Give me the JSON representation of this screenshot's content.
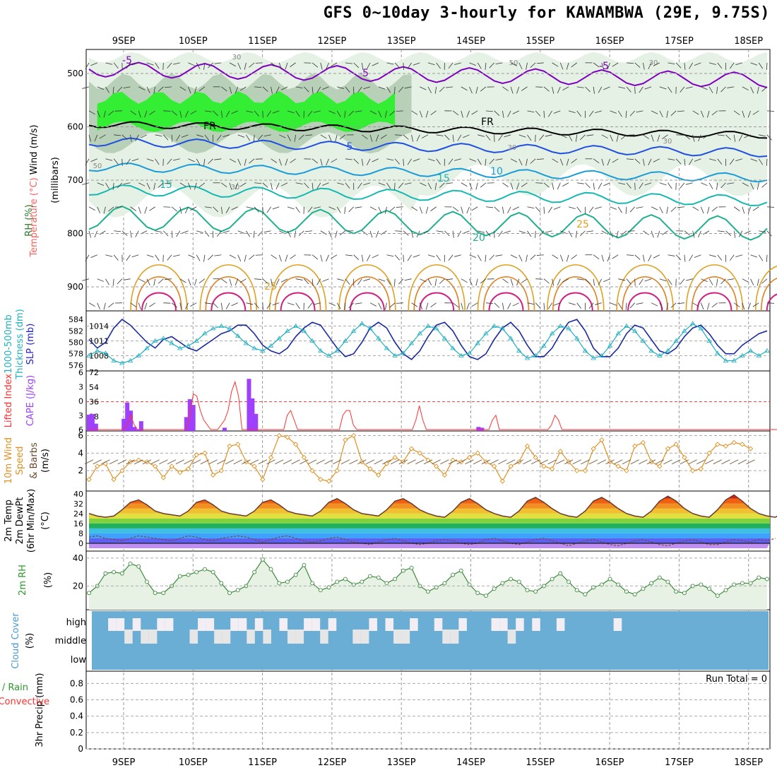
{
  "title": "GFS 0~10day 3-hourly for KAWAMBWA (29E, 9.75S)",
  "dates": [
    "9SEP",
    "10SEP",
    "11SEP",
    "12SEP",
    "13SEP",
    "14SEP",
    "15SEP",
    "16SEP",
    "17SEP",
    "18SEP"
  ],
  "run_total_label": "Run Total = 0",
  "panels": {
    "upper": {
      "label_wind": "Wind (m/s)",
      "label_temp": "Temperature (°C)",
      "label_rh": "RH (%)",
      "label_pres": "(millibars)"
    },
    "thickness": {
      "label_a": "1000-500mb",
      "label_b": "Thickness (dm)",
      "label_c": "SLP (mb)"
    },
    "cape": {
      "label_a": "Lifted Index",
      "label_b": "CAPE (J/kg)"
    },
    "wind10": {
      "label_a": "10m Wind",
      "label_b": "Speed",
      "label_c": "& Barbs",
      "label_d": "(m/s)"
    },
    "temp2m": {
      "label_a": "2m Temp",
      "label_b": "2m DewPt",
      "label_c": "(6hr Min/Max)",
      "label_d": "(°C)"
    },
    "rh2m": {
      "label_a": "2m RH",
      "label_b": "(%)"
    },
    "cloud": {
      "label_a": "Cloud Cover",
      "label_b": "(%)",
      "high": "high",
      "middle": "middle",
      "low": "low"
    },
    "precip": {
      "label_a": "Total / Rain",
      "label_b": "Convective",
      "label_c": "3hr Precip (mm)"
    }
  },
  "colors": {
    "rh": "#3b9c3b",
    "temp_red": "#ff4040",
    "wind": "#1a2aa0",
    "slp": "#2020d0",
    "thick": "#20b0c0",
    "cape": "#a040ff",
    "li": "#ff3030",
    "speed": "#e09020",
    "cloud": "#6aaed6"
  },
  "chart_data": [
    {
      "type": "contour",
      "title": "",
      "ylabel": "millibars",
      "y_ticks": [
        500,
        600,
        700,
        800,
        900
      ],
      "ylim": [
        945,
        455
      ],
      "temperature_contour_labels": [
        "-5",
        "-5",
        "-5",
        "5",
        "10",
        "15",
        "15",
        "20",
        "25",
        "25",
        "FR",
        "FR"
      ],
      "rh_contour_labels": [
        "30",
        "30",
        "50",
        "50",
        "30",
        "30",
        "30"
      ]
    },
    {
      "type": "line",
      "title": "",
      "ylabel_left": "1000-500mb Thickness (dm)",
      "ylabel_right": "SLP (mb)",
      "y_ticks_left": [
        576,
        578,
        580,
        582,
        584
      ],
      "y_ticks_right": [
        1008,
        1011,
        1014
      ],
      "series": [
        {
          "name": "1000-500mb Thickness (dm)",
          "values": [
            580.5,
            579.0,
            580.0,
            582.5,
            584.0,
            583.0,
            581.5,
            580.0,
            579.0,
            580.5,
            581.0,
            580.0,
            579.0,
            578.5,
            579.5,
            580.5,
            581.5,
            582.0,
            583.0,
            583.0,
            581.5,
            579.5,
            578.5,
            578.0,
            579.0,
            581.0,
            582.5,
            583.5,
            583.0,
            581.0,
            579.0,
            577.5,
            578.0,
            580.0,
            582.5,
            583.5,
            582.5,
            580.0,
            578.0,
            577.0,
            578.5,
            581.0,
            583.0,
            583.5,
            582.0,
            579.5,
            577.5,
            577.0,
            578.0,
            580.5,
            582.5,
            583.5,
            582.0,
            579.5,
            577.5,
            577.5,
            579.0,
            581.5,
            583.5,
            584.0,
            582.0,
            579.0,
            577.5,
            577.5,
            579.0,
            581.5,
            583.0,
            582.5,
            580.5,
            578.5,
            578.0,
            579.0,
            581.0,
            582.5,
            583.0,
            581.5,
            579.5,
            578.0,
            578.0,
            579.5,
            580.5,
            581.5,
            582.0
          ]
        },
        {
          "name": "SLP (mb)",
          "values": [
            1008.0,
            1009.0,
            1008.5,
            1007.0,
            1006.5,
            1007.0,
            1008.0,
            1009.5,
            1011.0,
            1011.5,
            1010.5,
            1009.5,
            1010.0,
            1011.0,
            1012.5,
            1013.5,
            1014.0,
            1013.5,
            1012.0,
            1010.5,
            1009.5,
            1009.0,
            1010.0,
            1011.5,
            1013.0,
            1014.0,
            1013.0,
            1011.0,
            1009.0,
            1008.0,
            1009.0,
            1011.0,
            1013.0,
            1014.5,
            1013.5,
            1011.5,
            1009.5,
            1008.0,
            1008.5,
            1010.5,
            1012.5,
            1014.0,
            1013.5,
            1011.5,
            1009.5,
            1008.0,
            1008.5,
            1010.5,
            1012.5,
            1014.0,
            1013.5,
            1011.5,
            1009.0,
            1007.5,
            1008.0,
            1010.0,
            1012.5,
            1014.0,
            1013.5,
            1011.5,
            1009.0,
            1007.5,
            1008.0,
            1010.0,
            1012.5,
            1014.0,
            1013.0,
            1011.0,
            1009.0,
            1008.0,
            1009.0,
            1011.0,
            1013.0,
            1014.5,
            1013.5,
            1011.0,
            1008.5,
            1007.0,
            1007.0,
            1008.0,
            1009.0,
            1008.0,
            1009.0
          ]
        }
      ]
    },
    {
      "type": "bar",
      "title": "",
      "ylabel_left": "Lifted Index",
      "ylabel_right": "CAPE (J/kg)",
      "li_ticks": [
        -6,
        -3,
        0,
        3,
        6
      ],
      "cape_ticks": [
        18,
        36,
        54,
        72
      ],
      "series": [
        {
          "name": "CAPE (J/kg)",
          "values": [
            20,
            21,
            9,
            0,
            0,
            0,
            0,
            0,
            0,
            0,
            15,
            35,
            25,
            5,
            2,
            12,
            0,
            0,
            0,
            0,
            0,
            0,
            0,
            0,
            0,
            0,
            0,
            0,
            17,
            39,
            32,
            0,
            0,
            0,
            0,
            0,
            0,
            0,
            0,
            4,
            0,
            0,
            0,
            0,
            0,
            0,
            64,
            40,
            21,
            0,
            0,
            0,
            0,
            0,
            0,
            0,
            0,
            0,
            0,
            0,
            0,
            0,
            0,
            0,
            0,
            0,
            0,
            0,
            0,
            0,
            0,
            0,
            0,
            0,
            0,
            0,
            0,
            0,
            0,
            0,
            0,
            0,
            0,
            0,
            0,
            0,
            0,
            0,
            0,
            0,
            0,
            0,
            0,
            0,
            0,
            0,
            0,
            0,
            0,
            0,
            0,
            0,
            0,
            0,
            0,
            0,
            0,
            0,
            0,
            0,
            0,
            0,
            5,
            4,
            0,
            0,
            0,
            0,
            0,
            0,
            0,
            0,
            0,
            0,
            0,
            0,
            0,
            0,
            0,
            0,
            0,
            0,
            0,
            0,
            0,
            0,
            0,
            0,
            0,
            0,
            0,
            0,
            0,
            0,
            0,
            0,
            0,
            0,
            0,
            0,
            0,
            0,
            0,
            0,
            0,
            0,
            0,
            0,
            0,
            0,
            0,
            0,
            0,
            0,
            0,
            0,
            0,
            0,
            0,
            0,
            0,
            0,
            0,
            0,
            0,
            0,
            0,
            0,
            0,
            0,
            0,
            0,
            0,
            0,
            0,
            0,
            0,
            0,
            0,
            0,
            0,
            0,
            0,
            0,
            0,
            0
          ]
        },
        {
          "name": "Lifted Index",
          "values": [
            6,
            6,
            6,
            6,
            6,
            6,
            6,
            6,
            6,
            6,
            6,
            5,
            3,
            5,
            6,
            6,
            6,
            6,
            6,
            6,
            6,
            6,
            6,
            6,
            6,
            6,
            6,
            6,
            6,
            3,
            -1.5,
            -1,
            2,
            4,
            5,
            6,
            6,
            6,
            5,
            4,
            2,
            -2,
            -4,
            -1,
            6,
            6,
            6,
            6,
            6,
            6,
            6,
            6,
            6,
            6,
            6,
            6,
            6,
            3,
            2,
            4,
            6,
            6,
            6,
            6,
            6,
            6,
            6,
            6,
            6,
            6,
            6,
            6,
            6,
            3,
            2,
            2,
            5,
            6,
            6,
            6,
            6,
            6,
            6,
            6,
            6,
            6,
            6,
            6,
            6,
            6,
            6,
            6,
            6,
            6,
            4,
            1,
            4,
            6,
            6,
            6,
            6,
            6,
            6,
            6,
            6,
            6,
            6,
            6,
            6,
            6,
            6,
            6,
            6,
            6,
            6,
            6,
            4,
            3,
            6,
            6,
            6,
            6,
            6,
            6,
            6,
            6,
            6,
            6,
            6,
            6,
            6,
            6,
            6,
            5,
            3,
            4,
            6,
            6,
            6,
            6,
            6,
            6,
            6,
            6,
            6,
            6,
            6,
            6,
            6,
            6,
            6,
            6,
            6,
            6,
            6,
            6,
            6,
            6,
            6,
            6,
            6,
            6,
            6,
            6,
            6,
            6,
            6,
            6,
            6,
            6,
            6,
            6,
            6,
            6,
            6,
            6,
            6,
            6,
            6,
            6,
            6,
            6,
            6,
            6,
            6,
            6,
            6,
            6,
            6,
            6,
            6,
            6,
            6,
            6,
            6,
            6,
            6,
            6,
            6,
            6,
            5
          ]
        }
      ]
    },
    {
      "type": "line",
      "title": "",
      "ylabel": "10m Wind Speed & Barbs (m/s)",
      "y_ticks": [
        2,
        4,
        6
      ],
      "series": [
        {
          "name": "10m Wind Speed",
          "values": [
            1.0,
            2.5,
            2.8,
            1.0,
            2.0,
            3.0,
            3.2,
            3.0,
            2.5,
            1.2,
            2.5,
            1.8,
            2.2,
            3.8,
            4.0,
            1.5,
            2.0,
            4.8,
            5.0,
            3.0,
            2.5,
            1.0,
            3.5,
            6.0,
            5.8,
            5.0,
            3.5,
            2.0,
            1.0,
            0.8,
            2.0,
            5.5,
            6.0,
            3.0,
            2.2,
            1.5,
            2.8,
            3.5,
            3.0,
            4.5,
            4.0,
            3.2,
            2.5,
            1.5,
            3.2,
            3.0,
            3.5,
            4.0,
            3.0,
            2.5,
            0.8,
            2.5,
            3.0,
            4.8,
            3.5,
            2.5,
            2.2,
            4.2,
            3.0,
            2.0,
            2.0,
            4.5,
            5.5,
            3.0,
            2.5,
            2.0,
            4.8,
            5.2,
            3.0,
            2.5,
            4.5,
            5.0,
            3.5,
            2.0,
            2.2,
            4.0,
            5.0,
            4.8,
            5.2,
            5.0,
            4.5
          ]
        }
      ]
    },
    {
      "type": "area",
      "title": "",
      "ylabel": "2m Temp / 2m DewPt (°C)",
      "y_ticks": [
        0,
        8,
        16,
        24,
        32,
        40
      ],
      "series": [
        {
          "name": "2m Temp",
          "values": [
            24,
            22,
            21,
            22,
            27,
            33,
            35,
            31,
            26,
            24,
            23,
            22,
            26,
            33,
            35,
            31,
            26,
            24,
            23,
            22,
            26,
            33,
            35,
            31,
            26,
            24,
            23,
            22,
            26,
            33,
            36,
            32,
            27,
            24,
            23,
            22,
            27,
            34,
            36,
            32,
            27,
            24,
            22,
            21,
            26,
            33,
            36,
            32,
            27,
            24,
            22,
            21,
            26,
            34,
            37,
            33,
            28,
            24,
            22,
            21,
            26,
            34,
            37,
            33,
            28,
            24,
            22,
            21,
            26,
            34,
            38,
            34,
            28,
            24,
            22,
            21,
            27,
            35,
            39,
            34,
            28,
            24,
            22,
            21,
            25
          ]
        },
        {
          "name": "2m DewPt",
          "values": [
            5,
            6,
            4,
            3,
            2,
            4,
            6,
            5,
            4,
            3,
            2,
            4,
            6,
            5,
            3,
            2,
            4,
            5,
            6,
            5,
            3,
            1,
            3,
            5,
            6,
            4,
            2,
            1,
            2,
            4,
            5,
            3,
            1,
            0,
            -1,
            1,
            3,
            4,
            2,
            0,
            -1,
            0,
            2,
            3,
            2,
            0,
            -1,
            0,
            3,
            4,
            2,
            0,
            -1,
            1,
            3,
            4,
            2,
            0,
            -2,
            0,
            2,
            3,
            1,
            -1,
            -2,
            0,
            2,
            3,
            1,
            -1,
            -2,
            0,
            2,
            3,
            1,
            -1,
            -1,
            1,
            3,
            2,
            1,
            3,
            2,
            4
          ]
        }
      ]
    },
    {
      "type": "area",
      "title": "",
      "ylabel": "2m RH (%)",
      "y_ticks": [
        20,
        40
      ],
      "series": [
        {
          "name": "2m RH",
          "values": [
            15,
            20,
            29,
            30,
            29,
            36,
            34,
            23,
            15,
            15,
            20,
            27,
            28,
            30,
            32,
            30,
            22,
            15,
            17,
            20,
            30,
            39,
            32,
            22,
            23,
            28,
            35,
            22,
            17,
            19,
            23,
            25,
            21,
            23,
            27,
            26,
            22,
            25,
            31,
            33,
            20,
            16,
            19,
            22,
            28,
            31,
            21,
            15,
            13,
            18,
            22,
            25,
            23,
            17,
            16,
            20,
            25,
            29,
            23,
            17,
            14,
            19,
            21,
            25,
            21,
            16,
            14,
            18,
            22,
            26,
            23,
            16,
            15,
            20,
            21,
            18,
            13,
            17,
            21,
            22,
            22,
            26,
            25
          ]
        }
      ]
    },
    {
      "type": "heatmap",
      "title": "",
      "ylabel": "Cloud Cover (%)",
      "categories": [
        "high",
        "middle",
        "low"
      ]
    },
    {
      "type": "bar",
      "title": "",
      "ylabel": "3hr Precip (mm)",
      "y_ticks": [
        0,
        0.2,
        0.4,
        0.6,
        0.8
      ],
      "ylim": [
        0,
        0.95
      ],
      "series": [
        {
          "name": "Total / Rain",
          "values": []
        },
        {
          "name": "Convective",
          "values": []
        }
      ]
    }
  ]
}
